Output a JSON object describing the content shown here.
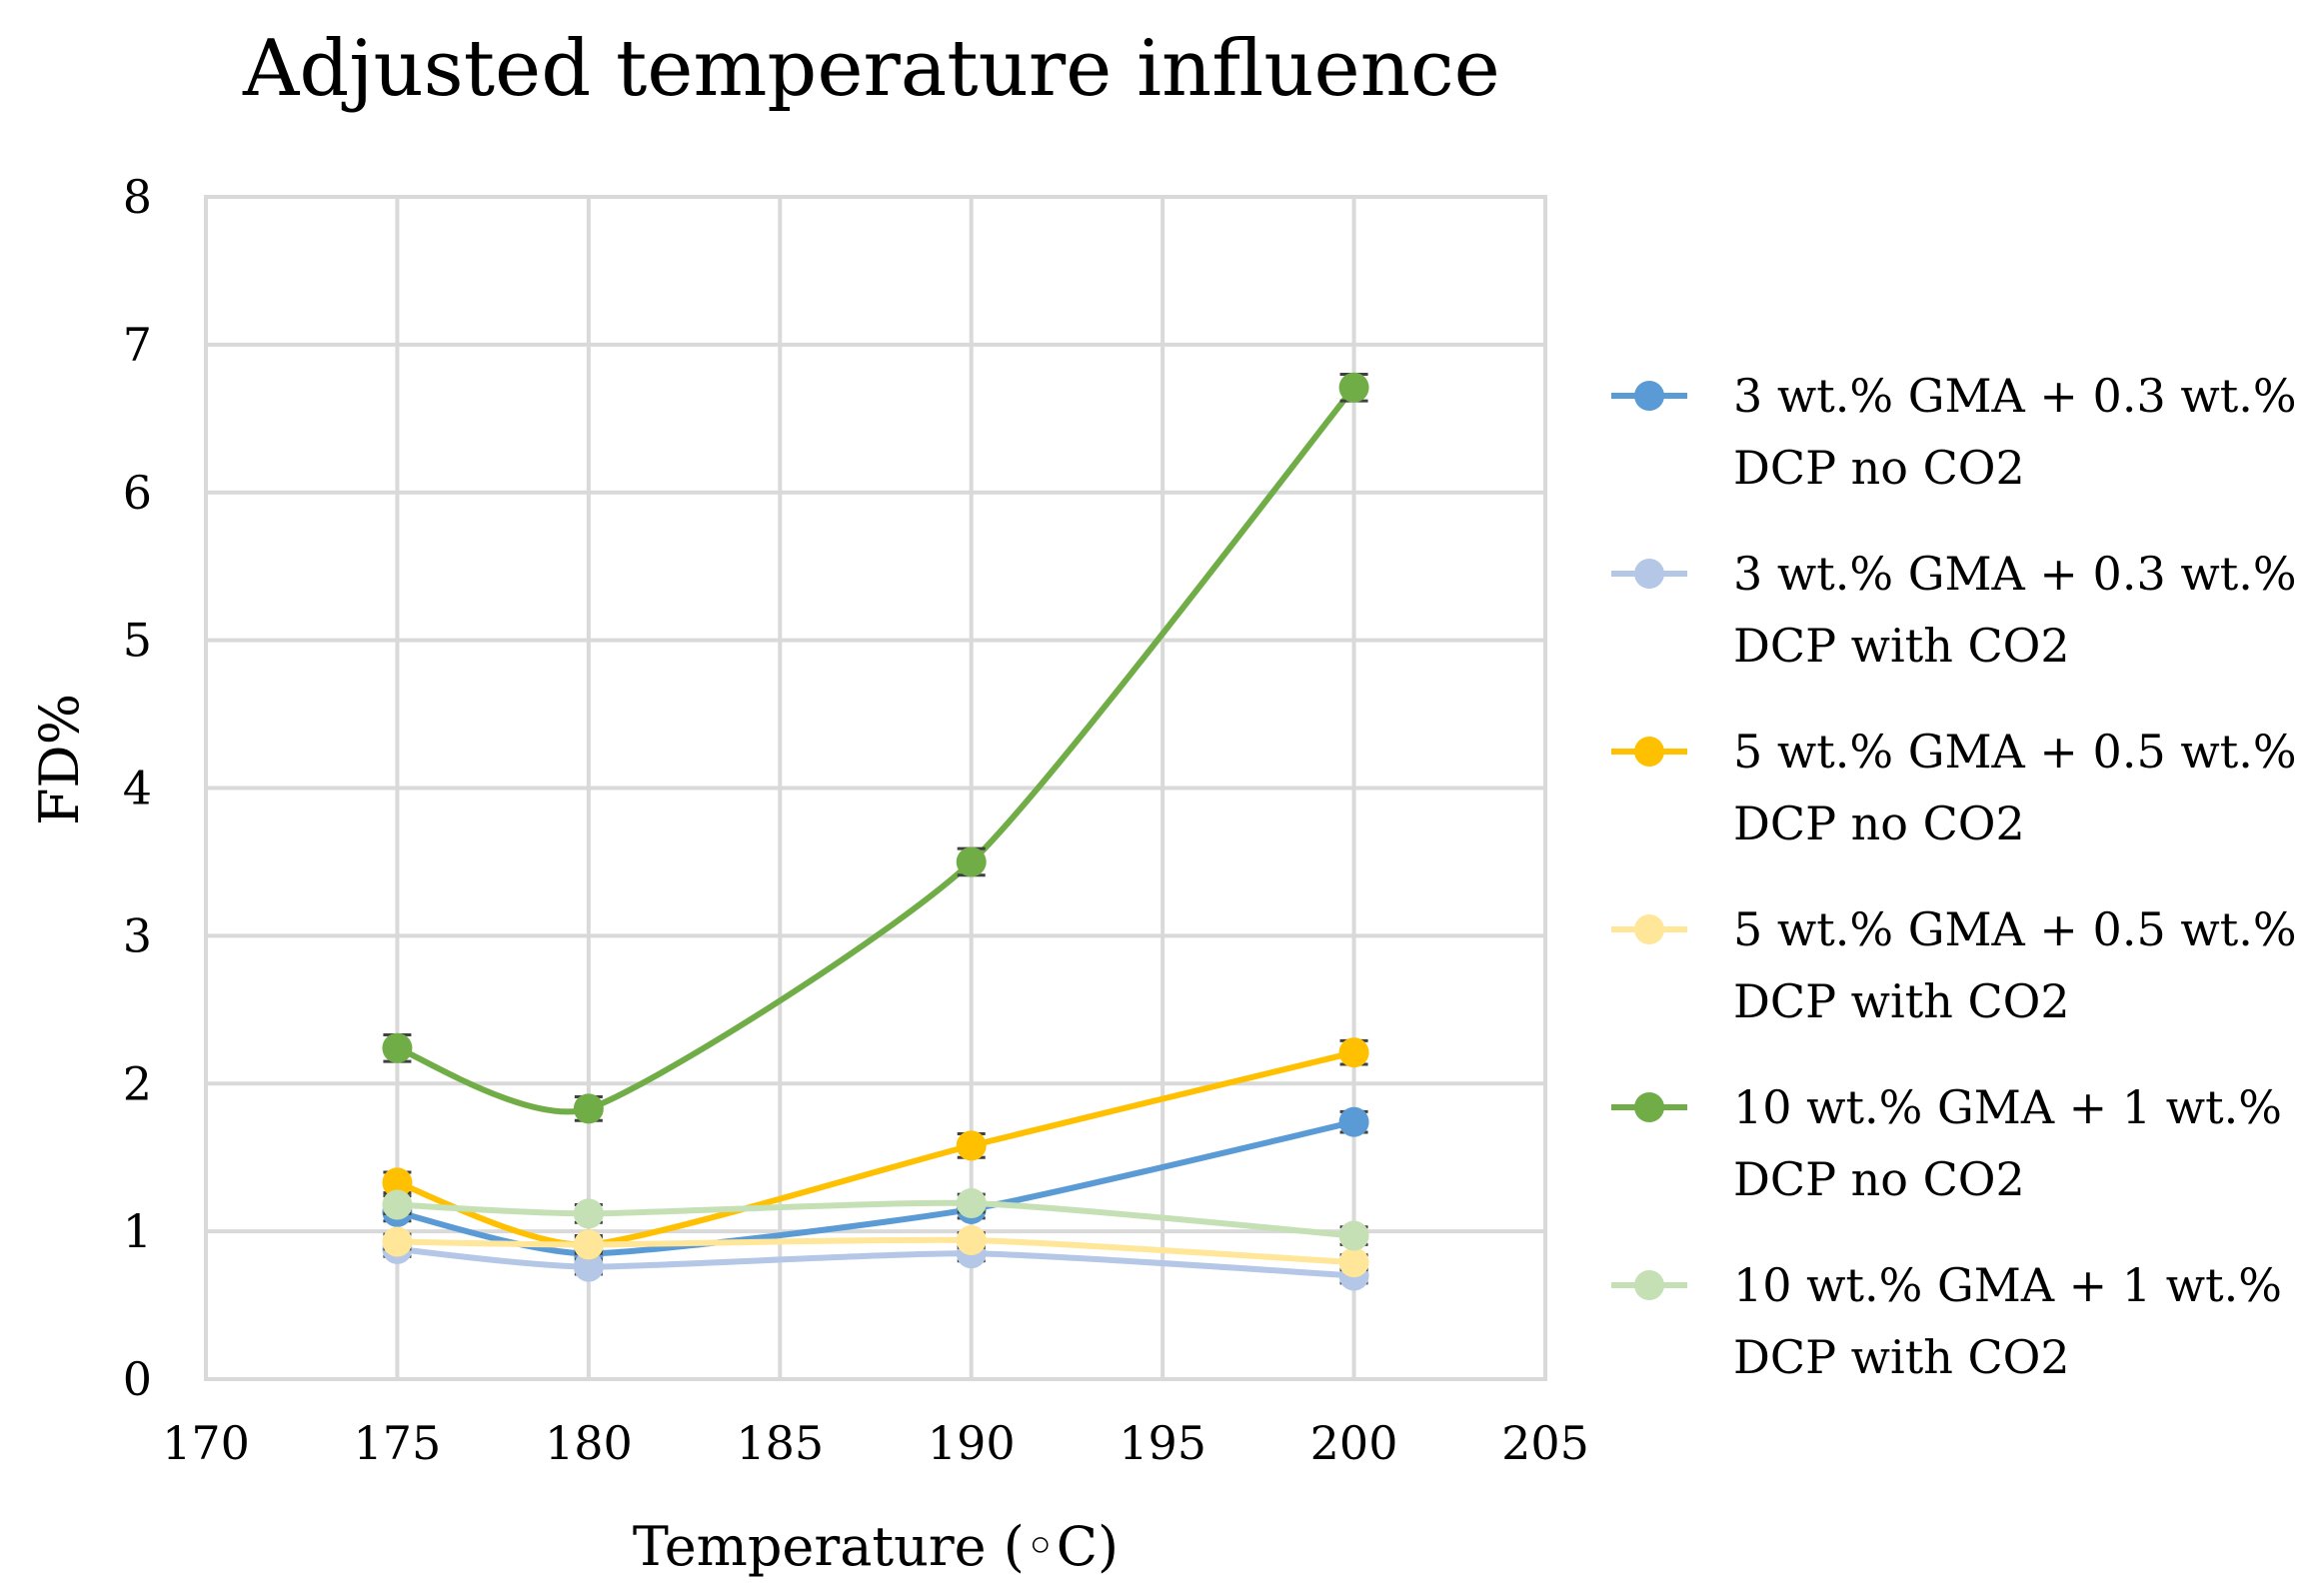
{
  "chart_data": {
    "type": "line",
    "title": "Adjusted temperature influence",
    "xlabel": "Temperature (◦C)",
    "ylabel": "FD%",
    "xlim": [
      170,
      205
    ],
    "ylim": [
      0,
      8
    ],
    "x_ticks": [
      "170",
      "175",
      "180",
      "185",
      "190",
      "195",
      "200",
      "205"
    ],
    "y_ticks": [
      "0",
      "1",
      "2",
      "3",
      "4",
      "5",
      "6",
      "7",
      "8"
    ],
    "grid": true,
    "legend_position": "right",
    "x": [
      175,
      180,
      190,
      200
    ],
    "series": [
      {
        "name_lines": [
          "3 wt.% GMA + 0.3 wt.%",
          "DCP no CO2"
        ],
        "color": "#5b9bd5",
        "values": [
          1.13,
          0.85,
          1.15,
          1.74
        ],
        "error": [
          0.06,
          0.05,
          0.06,
          0.07
        ]
      },
      {
        "name_lines": [
          "3 wt.% GMA + 0.3 wt.%",
          "DCP with CO2"
        ],
        "color": "#b4c7e7",
        "values": [
          0.88,
          0.76,
          0.85,
          0.7
        ],
        "error": [
          0.05,
          0.05,
          0.05,
          0.05
        ]
      },
      {
        "name_lines": [
          "5 wt.% GMA + 0.5 wt.%",
          "DCP no CO2"
        ],
        "color": "#ffc000",
        "values": [
          1.33,
          0.91,
          1.58,
          2.21
        ],
        "error": [
          0.07,
          0.06,
          0.08,
          0.08
        ]
      },
      {
        "name_lines": [
          "5 wt.% GMA + 0.5 wt.%",
          "DCP with CO2"
        ],
        "color": "#ffe699",
        "values": [
          0.93,
          0.91,
          0.94,
          0.79
        ],
        "error": [
          0.05,
          0.05,
          0.05,
          0.05
        ]
      },
      {
        "name_lines": [
          "10 wt.% GMA + 1 wt.%",
          "DCP no CO2"
        ],
        "color": "#70ad47",
        "values": [
          2.24,
          1.83,
          3.5,
          6.71
        ],
        "error": [
          0.09,
          0.08,
          0.09,
          0.09
        ]
      },
      {
        "name_lines": [
          "10 wt.% GMA + 1 wt.%",
          "DCP with CO2"
        ],
        "color": "#c5e0b4",
        "values": [
          1.18,
          1.12,
          1.19,
          0.97
        ],
        "error": [
          0.06,
          0.06,
          0.06,
          0.06
        ]
      }
    ]
  }
}
